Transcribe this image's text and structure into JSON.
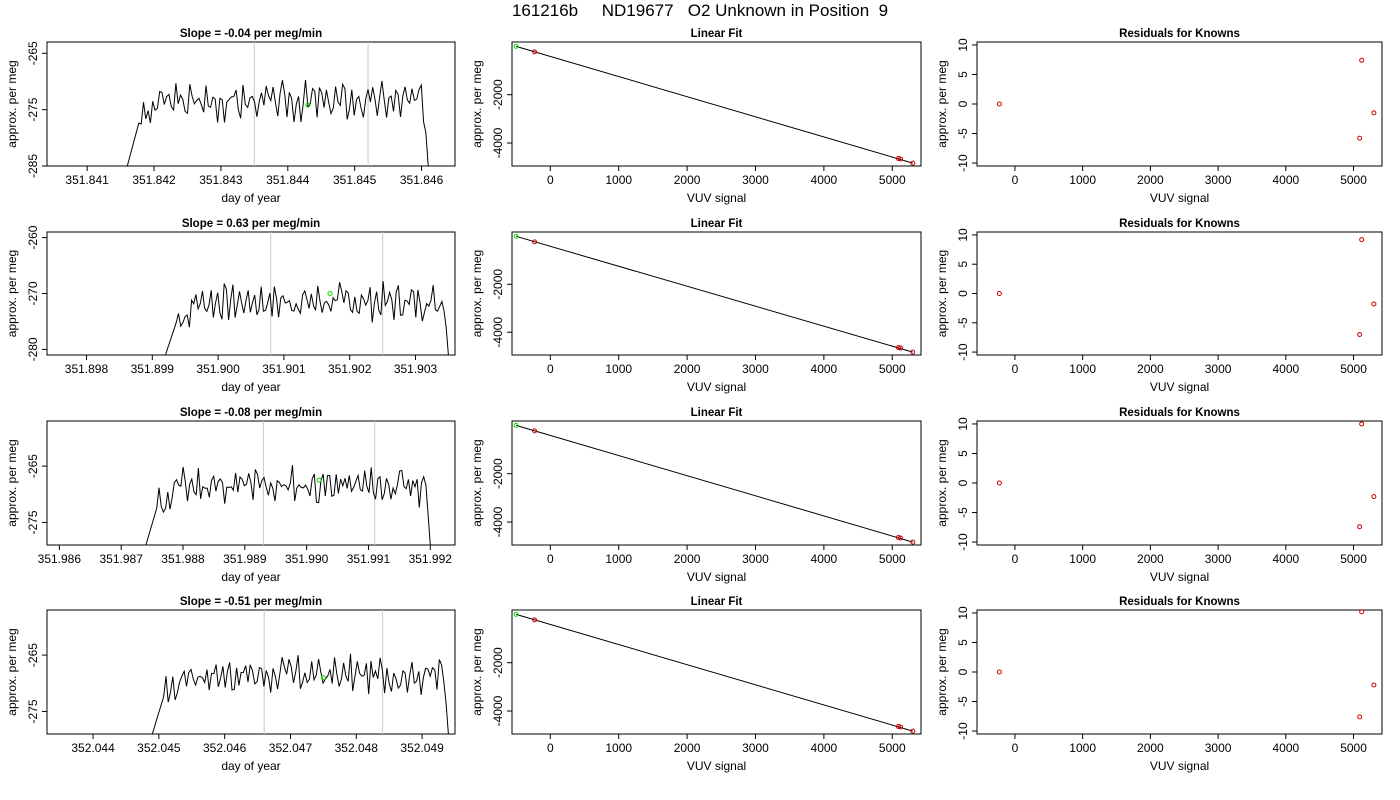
{
  "title": "161216b     ND19677   O2 Unknown in Position  9",
  "colors": {
    "trace": "#000000",
    "marker_unknown": "#00dd00",
    "marker_known": "#cc0000",
    "vline": "#c8c8c8"
  },
  "rows": [
    {
      "time_panel": {
        "title": "Slope =  -0.04  per meg/min",
        "xlabel": "day of year",
        "ylabel": "approx. per meg",
        "xlim": [
          351.8404,
          351.8465
        ],
        "ylim": [
          -285,
          -263
        ],
        "xticks": [
          351.841,
          351.842,
          351.843,
          351.844,
          351.845,
          351.846
        ],
        "yticks": [
          -285,
          -275,
          -265
        ],
        "decimals": 3,
        "start": 351.8416,
        "end": 351.8461,
        "base": -273.5,
        "amp": 1.8,
        "seed": 3,
        "vlines": [
          351.8435,
          351.8452
        ],
        "point": {
          "x": 351.8443,
          "y": -274.2
        }
      },
      "fit_panel": {
        "title": "Linear Fit",
        "xlabel": "VUV signal",
        "ylabel": "approx. per meg",
        "xlim": [
          -560,
          5420
        ],
        "ylim": [
          -4950,
          180
        ],
        "xticks": [
          0,
          1000,
          2000,
          3000,
          4000,
          5000
        ],
        "yticks": [
          -4000,
          -2000
        ],
        "line": [
          [
            -500,
            0
          ],
          [
            5300,
            -4830
          ]
        ],
        "green": [
          {
            "x": -500,
            "y": 0
          }
        ],
        "red": [
          {
            "x": -230,
            "y": -230
          },
          {
            "x": 5090,
            "y": -4640
          },
          {
            "x": 5120,
            "y": -4660
          },
          {
            "x": 5300,
            "y": -4830
          }
        ]
      },
      "resid_panel": {
        "title": "Residuals for Knowns",
        "xlabel": "VUV signal",
        "ylabel": "approx. per meg",
        "xlim": [
          -560,
          5420
        ],
        "ylim": [
          -10.5,
          10.5
        ],
        "xticks": [
          0,
          1000,
          2000,
          3000,
          4000,
          5000
        ],
        "yticks": [
          -10,
          -5,
          0,
          5,
          10
        ],
        "red": [
          {
            "x": -230,
            "y": 0
          },
          {
            "x": 5120,
            "y": 7.4
          },
          {
            "x": 5090,
            "y": -5.8
          },
          {
            "x": 5300,
            "y": -1.5
          }
        ]
      }
    },
    {
      "time_panel": {
        "title": "Slope =  0.63  per meg/min",
        "xlabel": "day of year",
        "ylabel": "approx. per meg",
        "xlim": [
          351.8974,
          351.9036
        ],
        "ylim": [
          -281,
          -259
        ],
        "xticks": [
          351.898,
          351.899,
          351.9,
          351.901,
          351.902,
          351.903
        ],
        "yticks": [
          -280,
          -270,
          -260
        ],
        "decimals": 3,
        "start": 351.8992,
        "end": 351.9035,
        "base": -271.5,
        "amp": 1.7,
        "seed": 7,
        "vlines": [
          351.9008,
          351.9025
        ],
        "point": {
          "x": 351.9017,
          "y": -270
        }
      },
      "fit_panel": {
        "title": "Linear Fit",
        "xlabel": "VUV signal",
        "ylabel": "approx. per meg",
        "xlim": [
          -560,
          5420
        ],
        "ylim": [
          -4950,
          180
        ],
        "xticks": [
          0,
          1000,
          2000,
          3000,
          4000,
          5000
        ],
        "yticks": [
          -4000,
          -2000
        ],
        "line": [
          [
            -500,
            0
          ],
          [
            5300,
            -4830
          ]
        ],
        "green": [
          {
            "x": -500,
            "y": 0
          }
        ],
        "red": [
          {
            "x": -230,
            "y": -230
          },
          {
            "x": 5090,
            "y": -4640
          },
          {
            "x": 5120,
            "y": -4660
          },
          {
            "x": 5300,
            "y": -4830
          }
        ]
      },
      "resid_panel": {
        "title": "Residuals for Knowns",
        "xlabel": "VUV signal",
        "ylabel": "approx. per meg",
        "xlim": [
          -560,
          5420
        ],
        "ylim": [
          -10.5,
          10.5
        ],
        "xticks": [
          0,
          1000,
          2000,
          3000,
          4000,
          5000
        ],
        "yticks": [
          -10,
          -5,
          0,
          5,
          10
        ],
        "red": [
          {
            "x": -230,
            "y": 0
          },
          {
            "x": 5120,
            "y": 9.2
          },
          {
            "x": 5090,
            "y": -7.0
          },
          {
            "x": 5300,
            "y": -1.8
          }
        ]
      }
    },
    {
      "time_panel": {
        "title": "Slope =  -0.08  per meg/min",
        "xlabel": "day of year",
        "ylabel": "approx. per meg",
        "xlim": [
          351.9858,
          351.9924
        ],
        "ylim": [
          -279,
          -257
        ],
        "xticks": [
          351.986,
          351.987,
          351.988,
          351.989,
          351.99,
          351.991,
          351.992
        ],
        "yticks": [
          -275,
          -265
        ],
        "decimals": 3,
        "start": 351.9874,
        "end": 351.992,
        "base": -268.5,
        "amp": 1.8,
        "seed": 11,
        "vlines": [
          351.9893,
          351.9911
        ],
        "point": {
          "x": 351.9902,
          "y": -267.5
        }
      },
      "fit_panel": {
        "title": "Linear Fit",
        "xlabel": "VUV signal",
        "ylabel": "approx. per meg",
        "xlim": [
          -560,
          5420
        ],
        "ylim": [
          -4950,
          180
        ],
        "xticks": [
          0,
          1000,
          2000,
          3000,
          4000,
          5000
        ],
        "yticks": [
          -4000,
          -2000
        ],
        "line": [
          [
            -500,
            0
          ],
          [
            5300,
            -4830
          ]
        ],
        "green": [
          {
            "x": -500,
            "y": 0
          }
        ],
        "red": [
          {
            "x": -230,
            "y": -230
          },
          {
            "x": 5090,
            "y": -4640
          },
          {
            "x": 5120,
            "y": -4660
          },
          {
            "x": 5300,
            "y": -4830
          }
        ]
      },
      "resid_panel": {
        "title": "Residuals for Knowns",
        "xlabel": "VUV signal",
        "ylabel": "approx. per meg",
        "xlim": [
          -560,
          5420
        ],
        "ylim": [
          -10.5,
          10.5
        ],
        "xticks": [
          0,
          1000,
          2000,
          3000,
          4000,
          5000
        ],
        "yticks": [
          -10,
          -5,
          0,
          5,
          10
        ],
        "red": [
          {
            "x": -230,
            "y": 0
          },
          {
            "x": 5120,
            "y": 10
          },
          {
            "x": 5090,
            "y": -7.4
          },
          {
            "x": 5300,
            "y": -2.3
          }
        ]
      }
    },
    {
      "time_panel": {
        "title": "Slope =  -0.51  per meg/min",
        "xlabel": "day of year",
        "ylabel": "approx. per meg",
        "xlim": [
          352.0433,
          352.0495
        ],
        "ylim": [
          -279,
          -257
        ],
        "xticks": [
          352.044,
          352.045,
          352.046,
          352.047,
          352.048,
          352.049
        ],
        "yticks": [
          -275,
          -265
        ],
        "decimals": 3,
        "start": 352.0449,
        "end": 352.0494,
        "base": -268.5,
        "amp": 1.8,
        "seed": 17,
        "vlines": [
          352.0466,
          352.0484
        ],
        "point": {
          "x": 352.0475,
          "y": -269
        }
      },
      "fit_panel": {
        "title": "Linear Fit",
        "xlabel": "VUV signal",
        "ylabel": "approx. per meg",
        "xlim": [
          -560,
          5420
        ],
        "ylim": [
          -4950,
          180
        ],
        "xticks": [
          0,
          1000,
          2000,
          3000,
          4000,
          5000
        ],
        "yticks": [
          -4000,
          -2000
        ],
        "line": [
          [
            -500,
            0
          ],
          [
            5300,
            -4830
          ]
        ],
        "green": [
          {
            "x": -500,
            "y": 0
          }
        ],
        "red": [
          {
            "x": -230,
            "y": -230
          },
          {
            "x": 5090,
            "y": -4640
          },
          {
            "x": 5120,
            "y": -4660
          },
          {
            "x": 5300,
            "y": -4830
          }
        ]
      },
      "resid_panel": {
        "title": "Residuals for Knowns",
        "xlabel": "VUV signal",
        "ylabel": "approx. per meg",
        "xlim": [
          -560,
          5420
        ],
        "ylim": [
          -10.5,
          10.5
        ],
        "xticks": [
          0,
          1000,
          2000,
          3000,
          4000,
          5000
        ],
        "yticks": [
          -10,
          -5,
          0,
          5,
          10
        ],
        "red": [
          {
            "x": -230,
            "y": 0
          },
          {
            "x": 5120,
            "y": 10.2
          },
          {
            "x": 5090,
            "y": -7.6
          },
          {
            "x": 5300,
            "y": -2.2
          }
        ]
      }
    }
  ],
  "chart_data": [
    {
      "type": "line",
      "title": "Slope =  -0.04  per meg/min",
      "xlabel": "day of year",
      "ylabel": "approx. per meg",
      "xlim": [
        351.8404,
        351.8465
      ],
      "ylim": [
        -285,
        -263
      ],
      "series": [
        {
          "x_start": 351.8416,
          "x_end": 351.8461,
          "y_level": -273.5,
          "noise_amp": 1.8
        }
      ],
      "marker": {
        "x": 351.8443,
        "y": -274.2
      },
      "vlines": [
        351.8435,
        351.8452
      ]
    },
    {
      "type": "scatter",
      "title": "Linear Fit",
      "xlabel": "VUV signal",
      "ylabel": "approx. per meg",
      "points_green": [
        [
          -500,
          0
        ]
      ],
      "points_red": [
        [
          -230,
          -230
        ],
        [
          5090,
          -4640
        ],
        [
          5120,
          -4660
        ],
        [
          5300,
          -4830
        ]
      ],
      "fit_line": [
        [
          -500,
          0
        ],
        [
          5300,
          -4830
        ]
      ]
    },
    {
      "type": "scatter",
      "title": "Residuals for Knowns",
      "xlabel": "VUV signal",
      "ylabel": "approx. per meg",
      "points_red": [
        [
          -230,
          0
        ],
        [
          5120,
          7.4
        ],
        [
          5090,
          -5.8
        ],
        [
          5300,
          -1.5
        ]
      ]
    },
    {
      "type": "line",
      "title": "Slope =  0.63  per meg/min",
      "xlabel": "day of year",
      "ylabel": "approx. per meg",
      "xlim": [
        351.8974,
        351.9036
      ],
      "ylim": [
        -281,
        -259
      ],
      "series": [
        {
          "x_start": 351.8992,
          "x_end": 351.9035,
          "y_level": -271.5,
          "noise_amp": 1.7
        }
      ],
      "marker": {
        "x": 351.9017,
        "y": -270
      },
      "vlines": [
        351.9008,
        351.9025
      ]
    },
    {
      "type": "scatter",
      "title": "Linear Fit",
      "xlabel": "VUV signal",
      "ylabel": "approx. per meg",
      "points_green": [
        [
          -500,
          0
        ]
      ],
      "points_red": [
        [
          -230,
          -230
        ],
        [
          5090,
          -4640
        ],
        [
          5120,
          -4660
        ],
        [
          5300,
          -4830
        ]
      ],
      "fit_line": [
        [
          -500,
          0
        ],
        [
          5300,
          -4830
        ]
      ]
    },
    {
      "type": "scatter",
      "title": "Residuals for Knowns",
      "xlabel": "VUV signal",
      "ylabel": "approx. per meg",
      "points_red": [
        [
          -230,
          0
        ],
        [
          5120,
          9.2
        ],
        [
          5090,
          -7.0
        ],
        [
          5300,
          -1.8
        ]
      ]
    },
    {
      "type": "line",
      "title": "Slope =  -0.08  per meg/min",
      "xlabel": "day of year",
      "ylabel": "approx. per meg",
      "xlim": [
        351.9858,
        351.9924
      ],
      "ylim": [
        -279,
        -257
      ],
      "series": [
        {
          "x_start": 351.9874,
          "x_end": 351.992,
          "y_level": -268.5,
          "noise_amp": 1.8
        }
      ],
      "marker": {
        "x": 351.9902,
        "y": -267.5
      },
      "vlines": [
        351.9893,
        351.9911
      ]
    },
    {
      "type": "scatter",
      "title": "Linear Fit",
      "xlabel": "VUV signal",
      "ylabel": "approx. per meg",
      "points_green": [
        [
          -500,
          0
        ]
      ],
      "points_red": [
        [
          -230,
          -230
        ],
        [
          5090,
          -4640
        ],
        [
          5120,
          -4660
        ],
        [
          5300,
          -4830
        ]
      ],
      "fit_line": [
        [
          -500,
          0
        ],
        [
          5300,
          -4830
        ]
      ]
    },
    {
      "type": "scatter",
      "title": "Residuals for Knowns",
      "xlabel": "VUV signal",
      "ylabel": "approx. per meg",
      "points_red": [
        [
          -230,
          0
        ],
        [
          5120,
          10
        ],
        [
          5090,
          -7.4
        ],
        [
          5300,
          -2.3
        ]
      ]
    },
    {
      "type": "line",
      "title": "Slope =  -0.51  per meg/min",
      "xlabel": "day of year",
      "ylabel": "approx. per meg",
      "xlim": [
        352.0433,
        352.0495
      ],
      "ylim": [
        -279,
        -257
      ],
      "series": [
        {
          "x_start": 352.0449,
          "x_end": 352.0494,
          "y_level": -268.5,
          "noise_amp": 1.8
        }
      ],
      "marker": {
        "x": 352.0475,
        "y": -269
      },
      "vlines": [
        352.0466,
        352.0484
      ]
    },
    {
      "type": "scatter",
      "title": "Linear Fit",
      "xlabel": "VUV signal",
      "ylabel": "approx. per meg",
      "points_green": [
        [
          -500,
          0
        ]
      ],
      "points_red": [
        [
          -230,
          -230
        ],
        [
          5090,
          -4640
        ],
        [
          5120,
          -4660
        ],
        [
          5300,
          -4830
        ]
      ],
      "fit_line": [
        [
          -500,
          0
        ],
        [
          5300,
          -4830
        ]
      ]
    },
    {
      "type": "scatter",
      "title": "Residuals for Knowns",
      "xlabel": "VUV signal",
      "ylabel": "approx. per meg",
      "points_red": [
        [
          -230,
          0
        ],
        [
          5120,
          10.2
        ],
        [
          5090,
          -7.6
        ],
        [
          5300,
          -2.2
        ]
      ]
    }
  ]
}
